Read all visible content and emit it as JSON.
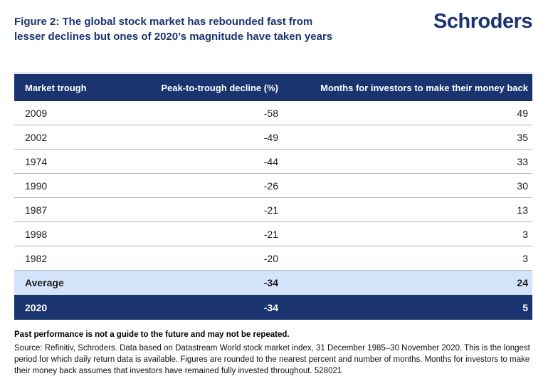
{
  "page": {
    "title_lines": [
      "Figure 2: The global stock market has rebounded fast from",
      "lesser declines but ones of 2020’s magnitude have taken years"
    ],
    "logo_text": "Schroders"
  },
  "table": {
    "columns": [
      "Market trough",
      "Peak-to-trough decline (%)",
      "Months for investors to make their money back"
    ],
    "rows": [
      {
        "trough": "2009",
        "decline": "-58",
        "months": "49"
      },
      {
        "trough": "2002",
        "decline": "-49",
        "months": "35"
      },
      {
        "trough": "1974",
        "decline": "-44",
        "months": "33"
      },
      {
        "trough": "1990",
        "decline": "-26",
        "months": "30"
      },
      {
        "trough": "1987",
        "decline": "-21",
        "months": "13"
      },
      {
        "trough": "1998",
        "decline": "-21",
        "months": "3"
      },
      {
        "trough": "1982",
        "decline": "-20",
        "months": "3"
      }
    ],
    "average": {
      "trough": "Average",
      "decline": "-34",
      "months": "24"
    },
    "highlight": {
      "trough": "2020",
      "decline": "-34",
      "months": "5"
    }
  },
  "footer": {
    "bold_note": "Past performance is not a guide to the future and may not be repeated.",
    "source": "Source: Refinitiv, Schroders. Data based on Datastream World stock market index, 31 December 1985–30 November 2020. This is the longest period for which daily return data is available. Figures are rounded to the nearest percent and number of months. Months for investors to make their money back assumes that investors have remained fully invested throughout. 528021"
  },
  "colors": {
    "brand_navy": "#1a3470",
    "header_bg": "#1a3470",
    "highlight_row_bg": "#1a3470",
    "average_row_bg": "#d3e4fa",
    "separator_gray": "#b4b4bc",
    "title_text": "#1a3470"
  },
  "chart_data": {
    "type": "table",
    "title": "Figure 2: The global stock market has rebounded fast from lesser declines but ones of 2020’s magnitude have taken years",
    "columns": [
      "Market trough",
      "Peak-to-trough decline (%)",
      "Months for investors to make their money back"
    ],
    "rows": [
      [
        "2009",
        -58,
        49
      ],
      [
        "2002",
        -49,
        35
      ],
      [
        "1974",
        -44,
        33
      ],
      [
        "1990",
        -26,
        30
      ],
      [
        "1987",
        -21,
        13
      ],
      [
        "1998",
        -21,
        3
      ],
      [
        "1982",
        -20,
        3
      ],
      [
        "Average",
        -34,
        24
      ],
      [
        "2020",
        -34,
        5
      ]
    ]
  }
}
